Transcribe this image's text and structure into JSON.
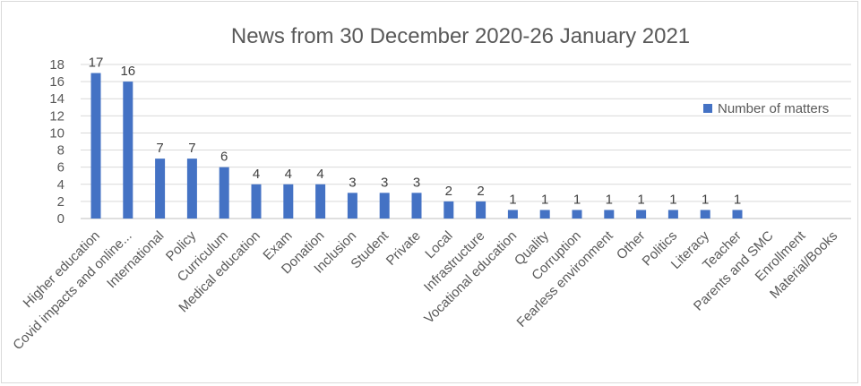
{
  "chart_data": {
    "type": "bar",
    "title": "News from 30 December 2020-26 January 2021",
    "xlabel": "",
    "ylabel": "",
    "ylim": [
      0,
      18
    ],
    "yticks": [
      0,
      2,
      4,
      6,
      8,
      10,
      12,
      14,
      16,
      18
    ],
    "grid": true,
    "legend_position": "right",
    "bar_color": "#4472C4",
    "categories": [
      "Higher education",
      "Covid impacts and online...",
      "International",
      "Policy",
      "Curriculum",
      "Medical education",
      "Exam",
      "Donation",
      "Inclusion",
      "Student",
      "Private",
      "Local",
      "Infrastructure",
      "Vocational education",
      "Quality",
      "Corruption",
      "Fearless environment",
      "Other",
      "Politics",
      "Literacy",
      "Teacher",
      "Parents and SMC",
      "Enrollment",
      "Material/Books"
    ],
    "series": [
      {
        "name": "Number of matters",
        "values": [
          17,
          16,
          7,
          7,
          6,
          4,
          4,
          4,
          3,
          3,
          3,
          2,
          2,
          1,
          1,
          1,
          1,
          1,
          1,
          1,
          1,
          0,
          0,
          0
        ],
        "data_labels": [
          "17",
          "16",
          "7",
          "7",
          "6",
          "4",
          "4",
          "4",
          "3",
          "3",
          "3",
          "2",
          "2",
          "1",
          "1",
          "1",
          "1",
          "1",
          "1",
          "1",
          "1",
          "",
          "",
          ""
        ]
      }
    ]
  }
}
